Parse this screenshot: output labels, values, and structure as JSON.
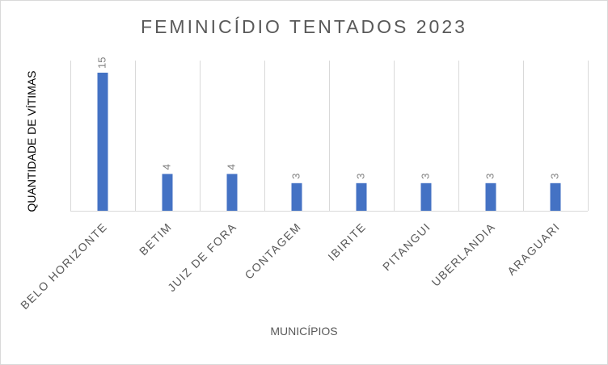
{
  "chart_data": {
    "type": "bar",
    "title": "FEMINICÍDIO  TENTADOS  2023",
    "xlabel": "MUNICÍPIOS",
    "ylabel": "QUANTIDADE DE VÍTIMAS",
    "categories": [
      "BELO HORIZONTE",
      "BETIM",
      "JUIZ DE FORA",
      "CONTAGEM",
      "IBIRITE",
      "PITANGUI",
      "UBERLANDIA",
      "ARAGUARI"
    ],
    "values": [
      15,
      4,
      4,
      3,
      3,
      3,
      3,
      3
    ],
    "data_labels": [
      "15",
      "4",
      "4",
      "3",
      "3",
      "3",
      "3",
      "3"
    ],
    "ylim": [
      0,
      15
    ],
    "grid": "vertical",
    "legend": "none",
    "colors": {
      "bar": "#4472c4",
      "grid": "#d9d9d9",
      "label": "#808080",
      "tick": "#595959"
    }
  }
}
